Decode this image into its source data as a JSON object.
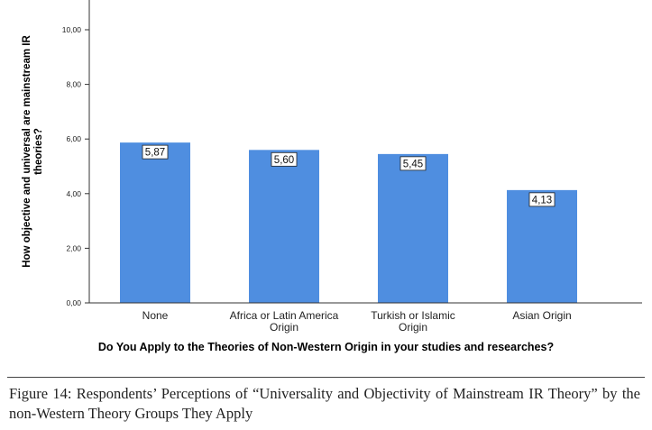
{
  "chart_data": {
    "type": "bar",
    "categories": [
      "None",
      "Africa or Latin America Origin",
      "Turkish or Islamic Origin",
      "Asian Origin"
    ],
    "category_lines": [
      [
        "None"
      ],
      [
        "Africa or Latin America",
        "Origin"
      ],
      [
        "Turkish or Islamic",
        "Origin"
      ],
      [
        "Asian Origin"
      ]
    ],
    "values": [
      5.87,
      5.6,
      5.45,
      4.13
    ],
    "data_labels": [
      "5,87",
      "5,60",
      "5,45",
      "4,13"
    ],
    "yticks": [
      0,
      2,
      4,
      6,
      8,
      10
    ],
    "ytick_labels": [
      "0,00",
      "2,00",
      "4,00",
      "6,00",
      "8,00",
      "10,00"
    ],
    "ylim": [
      0,
      10.9
    ],
    "ylabel_lines": [
      "How objective and universal are mainstream IR",
      "theories?"
    ],
    "xlabel": "Do You Apply to the Theories of Non-Western Origin in your studies and researches?",
    "bar_color": "#4f8ee0",
    "grid": false
  },
  "caption": "Figure 14: Respondents’ Perceptions of “Universality and Objectivity of Mainstream IR Theory” by the non-Western Theory Groups They Apply"
}
